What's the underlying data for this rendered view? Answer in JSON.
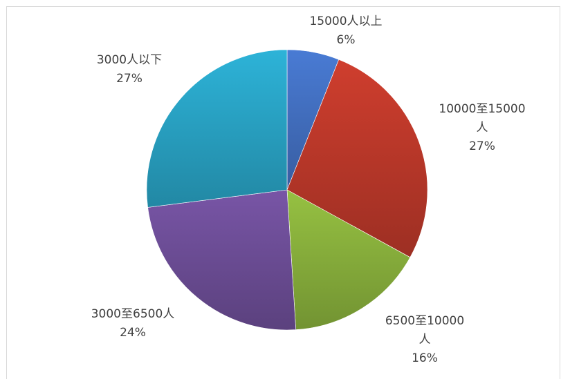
{
  "chart_data": {
    "type": "pie",
    "title": "",
    "legend": "none",
    "slices": [
      {
        "name": "15000人以上",
        "label_lines": [
          "15000人以上"
        ],
        "value": 6,
        "percent_label": "6%",
        "color": "#4472c4"
      },
      {
        "name": "10000至15000人",
        "label_lines": [
          "10000至15000",
          "人"
        ],
        "value": 27,
        "percent_label": "27%",
        "color": "#c0392b"
      },
      {
        "name": "6500至10000人",
        "label_lines": [
          "6500至10000",
          "人"
        ],
        "value": 16,
        "percent_label": "16%",
        "color": "#8bb33d"
      },
      {
        "name": "3000至6500人",
        "label_lines": [
          "3000至6500人"
        ],
        "value": 24,
        "percent_label": "24%",
        "color": "#6f4f9a"
      },
      {
        "name": "3000人以下",
        "label_lines": [
          "3000人以下"
        ],
        "value": 27,
        "percent_label": "27%",
        "color": "#2aa6c8"
      }
    ]
  }
}
